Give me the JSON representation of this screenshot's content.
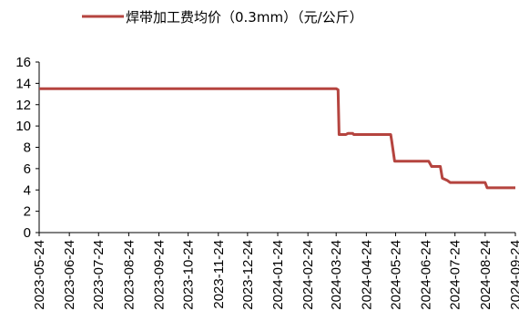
{
  "chart_data": {
    "type": "line",
    "legend": {
      "position": "top",
      "entries": [
        {
          "label": "焊带加工费均价（0.3mm）（元/公斤）",
          "color": "#b5443f"
        }
      ]
    },
    "grid": false,
    "ylim": [
      0,
      16
    ],
    "yticks": [
      0,
      2,
      4,
      6,
      8,
      10,
      12,
      14,
      16
    ],
    "xticks": [
      "2023-05-24",
      "2023-06-24",
      "2023-07-24",
      "2023-08-24",
      "2023-09-24",
      "2023-10-24",
      "2023-11-24",
      "2023-12-24",
      "2024-01-24",
      "2024-02-24",
      "2024-03-24",
      "2024-04-24",
      "2024-05-24",
      "2024-06-24",
      "2024-07-24",
      "2024-08-24",
      "2024-09-24"
    ],
    "series": [
      {
        "name": "焊带加工费均价（0.3mm）（元/公斤）",
        "color": "#b5443f",
        "points": [
          [
            "2023-05-24",
            13.5
          ],
          [
            "2024-03-24",
            13.5
          ],
          [
            "2024-03-26",
            13.4
          ],
          [
            "2024-03-27",
            9.2
          ],
          [
            "2024-04-03",
            9.2
          ],
          [
            "2024-04-05",
            9.3
          ],
          [
            "2024-04-10",
            9.3
          ],
          [
            "2024-04-11",
            9.2
          ],
          [
            "2024-05-19",
            9.2
          ],
          [
            "2024-05-20",
            8.6
          ],
          [
            "2024-05-23",
            6.7
          ],
          [
            "2024-06-27",
            6.7
          ],
          [
            "2024-06-30",
            6.2
          ],
          [
            "2024-07-09",
            6.2
          ],
          [
            "2024-07-11",
            5.1
          ],
          [
            "2024-07-16",
            4.9
          ],
          [
            "2024-07-19",
            4.7
          ],
          [
            "2024-08-24",
            4.7
          ],
          [
            "2024-08-26",
            4.2
          ],
          [
            "2024-09-24",
            4.2
          ]
        ]
      }
    ]
  }
}
